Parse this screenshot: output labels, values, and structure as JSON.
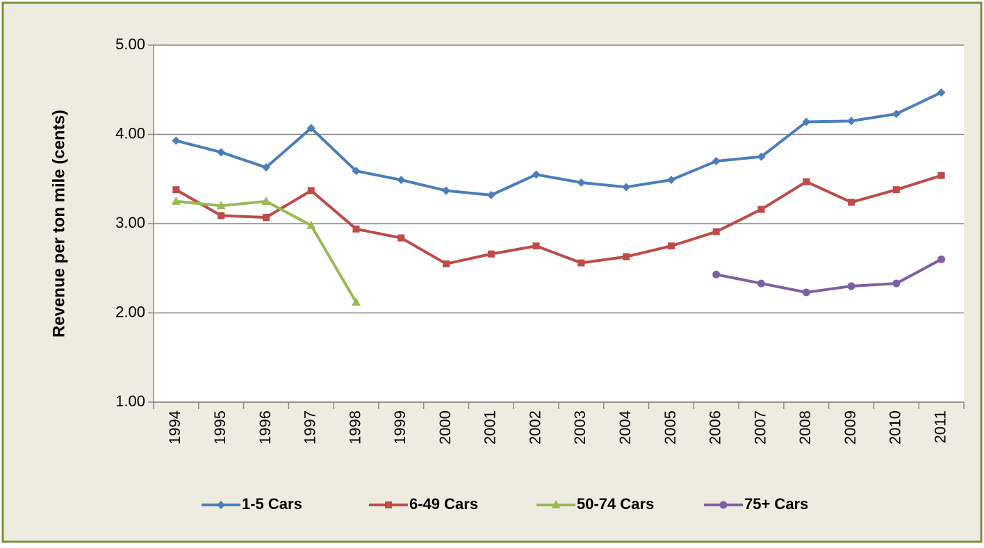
{
  "chart_data": {
    "type": "line",
    "y_label": "Revenue per ton mile (cents)",
    "categories": [
      "1994",
      "1995",
      "1996",
      "1997",
      "1998",
      "1999",
      "2000",
      "2001",
      "2002",
      "2003",
      "2004",
      "2005",
      "2006",
      "2007",
      "2008",
      "2009",
      "2010",
      "2011"
    ],
    "series": [
      {
        "name": "1-5 Cars",
        "color": "#4a7ebb",
        "marker": "diamond",
        "values": [
          3.93,
          3.8,
          3.63,
          4.07,
          3.59,
          3.49,
          3.37,
          3.32,
          3.55,
          3.46,
          3.41,
          3.49,
          3.7,
          3.75,
          4.14,
          4.15,
          4.23,
          4.47
        ]
      },
      {
        "name": "6-49 Cars",
        "color": "#be4b48",
        "marker": "square",
        "values": [
          3.38,
          3.09,
          3.07,
          3.37,
          2.94,
          2.84,
          2.55,
          2.66,
          2.75,
          2.56,
          2.63,
          2.75,
          2.91,
          3.16,
          3.47,
          3.24,
          3.38,
          3.54
        ]
      },
      {
        "name": "50-74 Cars",
        "color": "#98b954",
        "marker": "triangle",
        "values": [
          3.25,
          3.2,
          3.25,
          2.98,
          2.12,
          null,
          null,
          null,
          null,
          null,
          null,
          null,
          null,
          null,
          null,
          null,
          null,
          null
        ]
      },
      {
        "name": "75+ Cars",
        "color": "#7d60a0",
        "marker": "circle",
        "values": [
          null,
          null,
          null,
          null,
          null,
          null,
          null,
          null,
          null,
          null,
          null,
          null,
          2.43,
          2.33,
          2.23,
          2.3,
          2.33,
          2.6
        ]
      }
    ],
    "ylim": [
      1,
      5
    ],
    "yticks": [
      {
        "value": 1,
        "label": "1.00"
      },
      {
        "value": 2,
        "label": "2.00"
      },
      {
        "value": 3,
        "label": "3.00"
      },
      {
        "value": 4,
        "label": "4.00"
      },
      {
        "value": 5,
        "label": "5.00"
      }
    ],
    "grid": true,
    "legend": "bottom"
  }
}
